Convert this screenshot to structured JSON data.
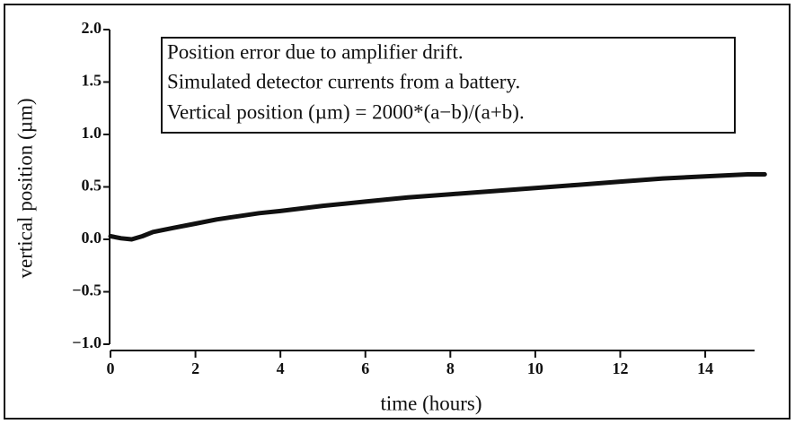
{
  "chart_data": {
    "type": "line",
    "xlabel": "time (hours)",
    "ylabel": "vertical position (µm)",
    "annotations": [
      "Position error due to amplifier drift.",
      "Simulated detector currents from a battery.",
      "Vertical position (µm) = 2000*(a−b)/(a+b)."
    ],
    "x": [
      0,
      0.25,
      0.5,
      0.75,
      1,
      1.5,
      2,
      2.5,
      3,
      3.5,
      4,
      5,
      6,
      7,
      8,
      9,
      10,
      11,
      12,
      13,
      14,
      15,
      15.4
    ],
    "values": [
      0.03,
      0.01,
      0.0,
      0.03,
      0.07,
      0.11,
      0.15,
      0.19,
      0.22,
      0.25,
      0.27,
      0.32,
      0.36,
      0.4,
      0.43,
      0.46,
      0.49,
      0.52,
      0.55,
      0.58,
      0.6,
      0.62,
      0.62
    ],
    "color": "#111111",
    "xlim": [
      0,
      15.5
    ],
    "ylim": [
      -1,
      2
    ],
    "xticks": [
      0,
      2,
      4,
      6,
      8,
      10,
      12,
      14
    ],
    "yticks": [
      {
        "value": 2,
        "label": "2.0"
      },
      {
        "value": 1.5,
        "label": "1.5"
      },
      {
        "value": 1,
        "label": "1.0"
      },
      {
        "value": 0.5,
        "label": "0.5"
      },
      {
        "value": 0,
        "label": "0.0"
      },
      {
        "value": -0.5,
        "label": "−0.5"
      },
      {
        "value": -1,
        "label": "−1.0"
      }
    ]
  }
}
